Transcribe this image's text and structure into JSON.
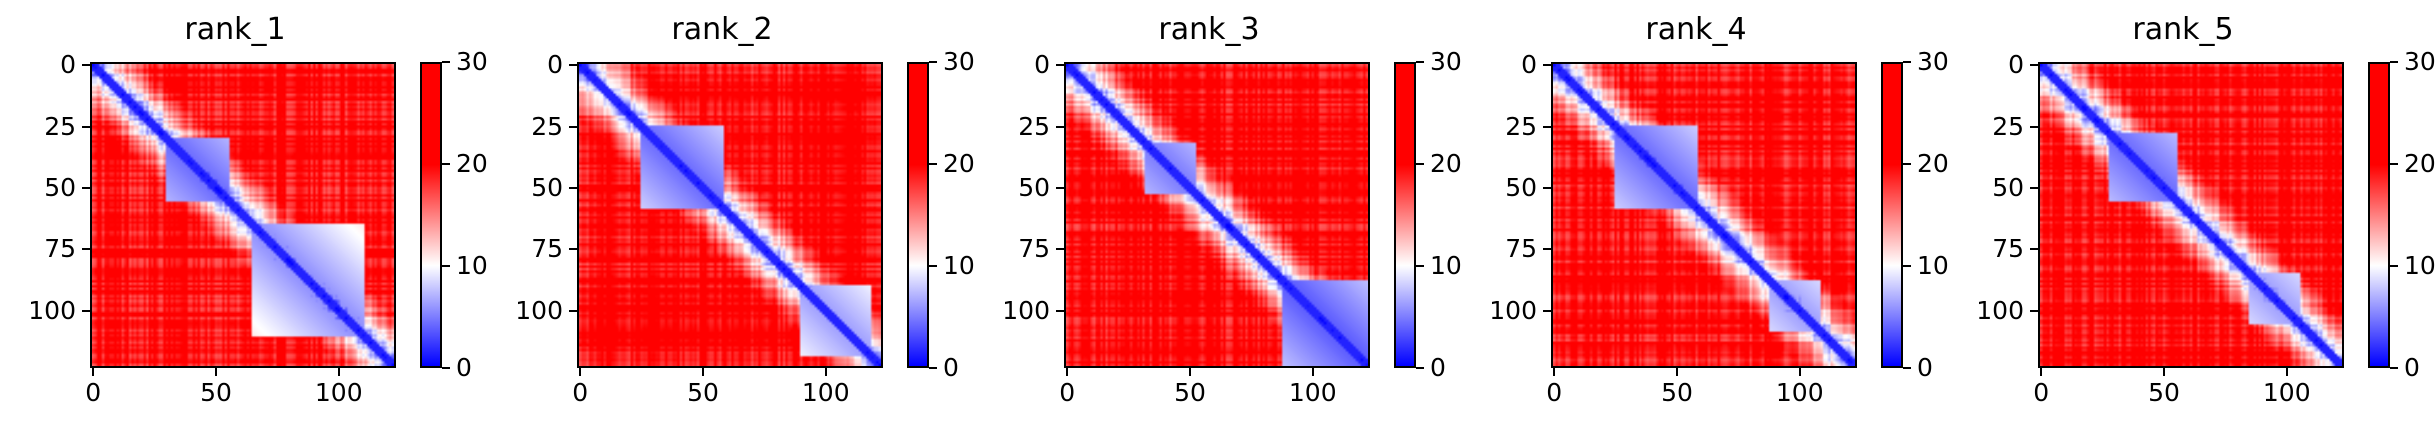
{
  "chart_data": [
    {
      "type": "heatmap",
      "title": "rank_1",
      "size": 123,
      "x_ticks": [
        "0",
        "50",
        "100"
      ],
      "y_ticks": [
        "0",
        "25",
        "50",
        "75",
        "100"
      ],
      "colorbar": {
        "min": 0,
        "max": 30,
        "ticks": [
          "0",
          "10",
          "20",
          "30"
        ],
        "colormap": "bwr"
      },
      "domains": [
        {
          "start": 30,
          "end": 55,
          "level": 6
        },
        {
          "start": 65,
          "end": 110,
          "level": 8
        }
      ]
    },
    {
      "type": "heatmap",
      "title": "rank_2",
      "size": 123,
      "x_ticks": [
        "0",
        "50",
        "100"
      ],
      "y_ticks": [
        "0",
        "25",
        "50",
        "75",
        "100"
      ],
      "colorbar": {
        "min": 0,
        "max": 30,
        "ticks": [
          "0",
          "10",
          "20",
          "30"
        ],
        "colormap": "bwr"
      },
      "domains": [
        {
          "start": 25,
          "end": 58,
          "level": 6
        },
        {
          "start": 90,
          "end": 118,
          "level": 9
        }
      ]
    },
    {
      "type": "heatmap",
      "title": "rank_3",
      "size": 123,
      "x_ticks": [
        "0",
        "50",
        "100"
      ],
      "y_ticks": [
        "0",
        "25",
        "50",
        "75",
        "100"
      ],
      "colorbar": {
        "min": 0,
        "max": 30,
        "ticks": [
          "0",
          "10",
          "20",
          "30"
        ],
        "colormap": "bwr"
      },
      "domains": [
        {
          "start": 32,
          "end": 52,
          "level": 7
        },
        {
          "start": 88,
          "end": 123,
          "level": 5
        }
      ]
    },
    {
      "type": "heatmap",
      "title": "rank_4",
      "size": 123,
      "x_ticks": [
        "0",
        "50",
        "100"
      ],
      "y_ticks": [
        "0",
        "25",
        "50",
        "75",
        "100"
      ],
      "colorbar": {
        "min": 0,
        "max": 30,
        "ticks": [
          "0",
          "10",
          "20",
          "30"
        ],
        "colormap": "bwr"
      },
      "domains": [
        {
          "start": 25,
          "end": 58,
          "level": 6
        },
        {
          "start": 88,
          "end": 108,
          "level": 9
        }
      ]
    },
    {
      "type": "heatmap",
      "title": "rank_5",
      "size": 123,
      "x_ticks": [
        "0",
        "50",
        "100"
      ],
      "y_ticks": [
        "0",
        "25",
        "50",
        "75",
        "100"
      ],
      "colorbar": {
        "min": 0,
        "max": 30,
        "ticks": [
          "0",
          "10",
          "20",
          "30"
        ],
        "colormap": "bwr"
      },
      "domains": [
        {
          "start": 28,
          "end": 55,
          "level": 6
        },
        {
          "start": 85,
          "end": 105,
          "level": 9
        }
      ]
    }
  ]
}
